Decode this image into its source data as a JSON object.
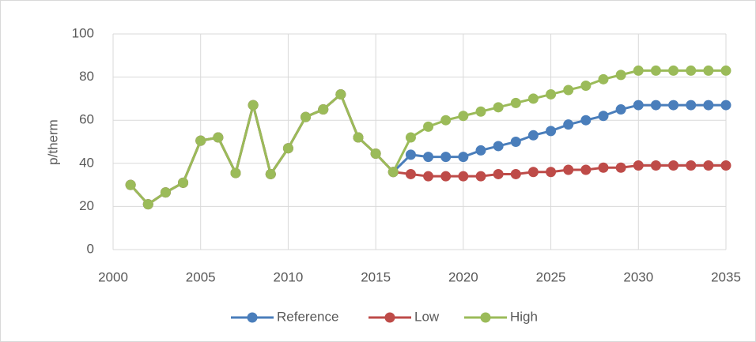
{
  "chart_data": {
    "type": "line",
    "y_label": "p/therm",
    "x": [
      2001,
      2002,
      2003,
      2004,
      2005,
      2006,
      2007,
      2008,
      2009,
      2010,
      2011,
      2012,
      2013,
      2014,
      2015,
      2016,
      2017,
      2018,
      2019,
      2020,
      2021,
      2022,
      2023,
      2024,
      2025,
      2026,
      2027,
      2028,
      2029,
      2030,
      2031,
      2032,
      2033,
      2034,
      2035
    ],
    "series": [
      {
        "name": "Reference",
        "color": "#4a7ebb",
        "values": [
          30,
          21,
          26.5,
          31,
          50.5,
          52,
          35.5,
          67,
          35,
          47,
          61.5,
          65,
          72,
          52,
          44.5,
          36,
          44,
          43,
          43,
          43,
          46,
          48,
          50,
          53,
          55,
          58,
          60,
          62,
          65,
          67,
          67,
          67,
          67,
          67,
          67
        ]
      },
      {
        "name": "Low",
        "color": "#be4b48",
        "values": [
          30,
          21,
          26.5,
          31,
          50.5,
          52,
          35.5,
          67,
          35,
          47,
          61.5,
          65,
          72,
          52,
          44.5,
          36,
          35,
          34,
          34,
          34,
          34,
          35,
          35,
          36,
          36,
          37,
          37,
          38,
          38,
          39,
          39,
          39,
          39,
          39,
          39
        ]
      },
      {
        "name": "High",
        "color": "#9bbb59",
        "values": [
          30,
          21,
          26.5,
          31,
          50.5,
          52,
          35.5,
          67,
          35,
          47,
          61.5,
          65,
          72,
          52,
          44.5,
          36,
          52,
          57,
          60,
          62,
          64,
          66,
          68,
          70,
          72,
          74,
          76,
          79,
          81,
          83,
          83,
          83,
          83,
          83,
          83
        ]
      }
    ],
    "xlim": [
      2000,
      2035
    ],
    "xticks": [
      2000,
      2005,
      2010,
      2015,
      2020,
      2025,
      2030,
      2035
    ],
    "ylim": [
      0,
      100
    ],
    "yticks": [
      0,
      20,
      40,
      60,
      80,
      100
    ],
    "grid": true,
    "legend": "bottom"
  }
}
